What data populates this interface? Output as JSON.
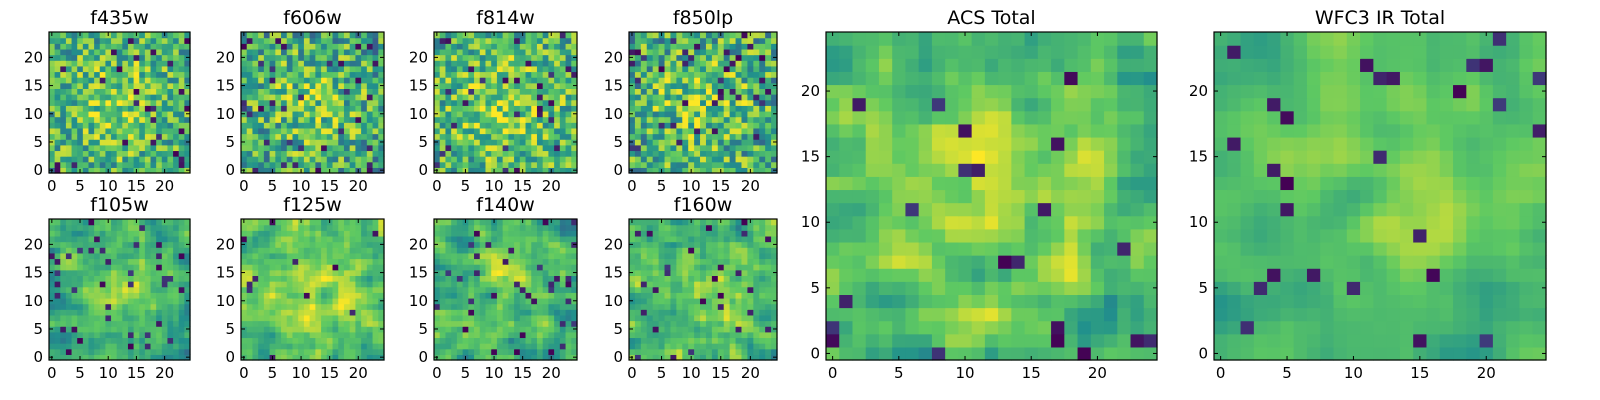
{
  "chart_data": {
    "type": "heatmap",
    "grid_size": 25,
    "colormap": "viridis",
    "colormap_stops": [
      "#440154",
      "#3b528b",
      "#21918c",
      "#5ec962",
      "#fde725"
    ],
    "panels": [
      {
        "title": "f435w",
        "xticks": [
          "0",
          "5",
          "10",
          "15",
          "20"
        ],
        "yticks": [
          "0",
          "5",
          "10",
          "15",
          "20"
        ],
        "seed": 11,
        "smooth": 0,
        "noise": 0.55,
        "dark_fraction": 0.04,
        "level": 0.62
      },
      {
        "title": "f606w",
        "xticks": [
          "0",
          "5",
          "10",
          "15",
          "20"
        ],
        "yticks": [
          "0",
          "5",
          "10",
          "15",
          "20"
        ],
        "seed": 23,
        "smooth": 0,
        "noise": 0.6,
        "dark_fraction": 0.05,
        "level": 0.58
      },
      {
        "title": "f814w",
        "xticks": [
          "0",
          "5",
          "10",
          "15",
          "20"
        ],
        "yticks": [
          "0",
          "5",
          "10",
          "15",
          "20"
        ],
        "seed": 37,
        "smooth": 0,
        "noise": 0.55,
        "dark_fraction": 0.04,
        "level": 0.64
      },
      {
        "title": "f850lp",
        "xticks": [
          "0",
          "5",
          "10",
          "15",
          "20"
        ],
        "yticks": [
          "0",
          "5",
          "10",
          "15",
          "20"
        ],
        "seed": 41,
        "smooth": 0,
        "noise": 0.6,
        "dark_fraction": 0.05,
        "level": 0.6
      },
      {
        "title": "f105w",
        "xticks": [
          "0",
          "5",
          "10",
          "15",
          "20"
        ],
        "yticks": [
          "0",
          "5",
          "10",
          "15",
          "20"
        ],
        "seed": 53,
        "smooth": 1,
        "noise": 0.5,
        "dark_fraction": 0.06,
        "level": 0.6
      },
      {
        "title": "f125w",
        "xticks": [
          "0",
          "5",
          "10",
          "15",
          "20"
        ],
        "yticks": [
          "0",
          "5",
          "10",
          "15",
          "20"
        ],
        "seed": 67,
        "smooth": 1,
        "noise": 0.5,
        "dark_fraction": 0.04,
        "level": 0.68
      },
      {
        "title": "f140w",
        "xticks": [
          "0",
          "5",
          "10",
          "15",
          "20"
        ],
        "yticks": [
          "0",
          "5",
          "10",
          "15",
          "20"
        ],
        "seed": 79,
        "smooth": 1,
        "noise": 0.5,
        "dark_fraction": 0.06,
        "level": 0.6
      },
      {
        "title": "f160w",
        "xticks": [
          "0",
          "5",
          "10",
          "15",
          "20"
        ],
        "yticks": [
          "0",
          "5",
          "10",
          "15",
          "20"
        ],
        "seed": 83,
        "smooth": 1,
        "noise": 0.5,
        "dark_fraction": 0.05,
        "level": 0.64
      },
      {
        "title": "ACS Total",
        "xticks": [
          "0",
          "5",
          "10",
          "15",
          "20"
        ],
        "yticks": [
          "0",
          "5",
          "10",
          "15",
          "20"
        ],
        "seed": 97,
        "smooth": 1,
        "noise": 0.45,
        "dark_fraction": 0.035,
        "level": 0.66
      },
      {
        "title": "WFC3 IR Total",
        "xticks": [
          "0",
          "5",
          "10",
          "15",
          "20"
        ],
        "yticks": [
          "0",
          "5",
          "10",
          "15",
          "20"
        ],
        "seed": 101,
        "smooth": 2,
        "noise": 0.35,
        "dark_fraction": 0.03,
        "level": 0.62
      }
    ],
    "xlim": [
      -0.5,
      24.5
    ],
    "ylim": [
      -0.5,
      24.5
    ],
    "grid": false,
    "legend": "none"
  }
}
